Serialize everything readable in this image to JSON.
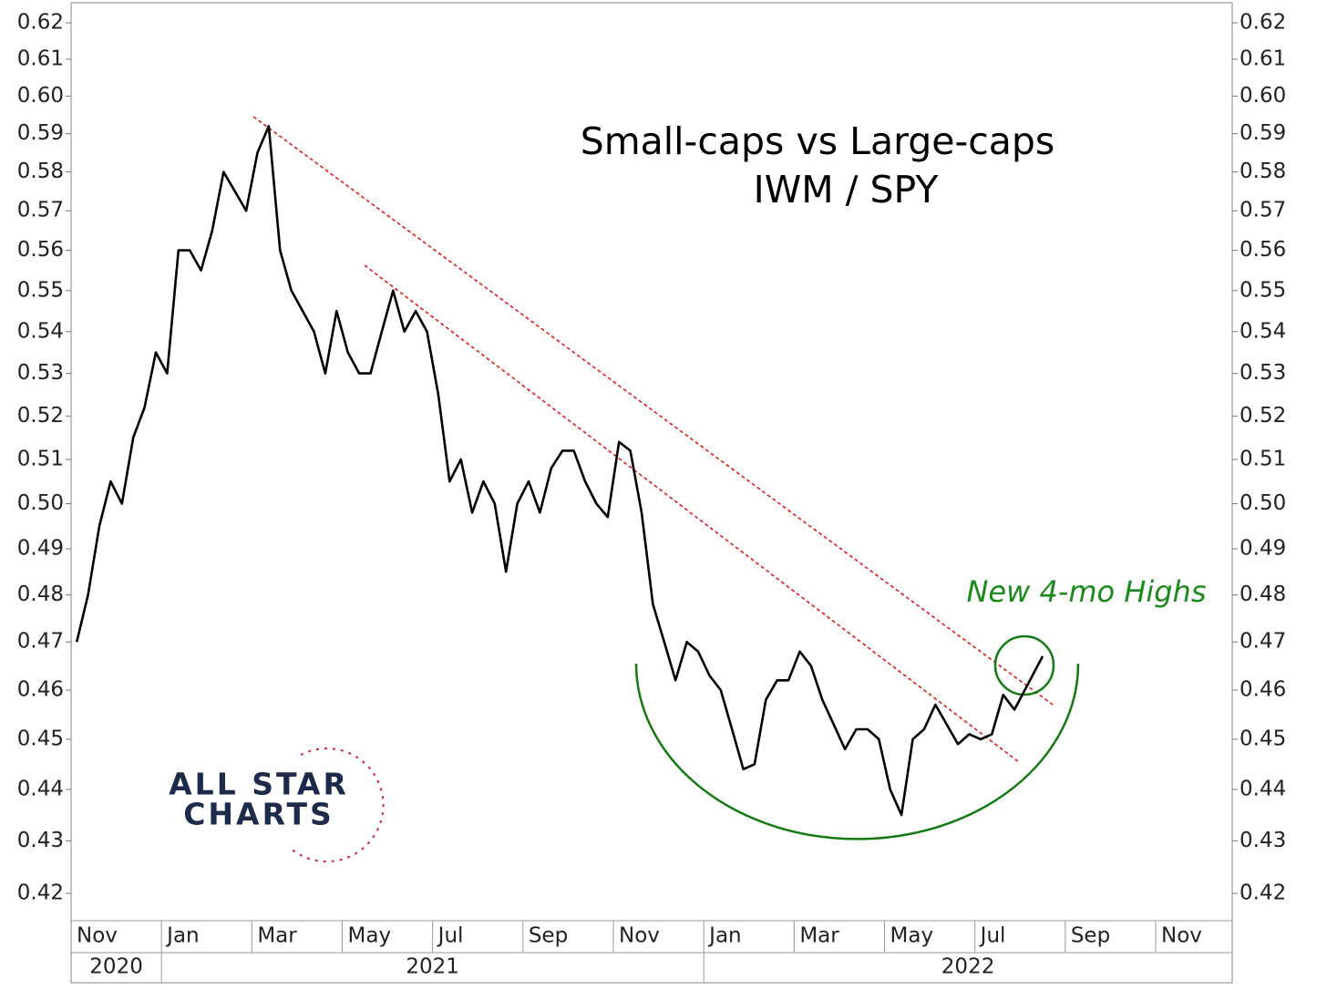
{
  "chart_data": {
    "type": "line",
    "title": [
      "Small-caps vs Large-caps",
      "IWM / SPY"
    ],
    "annotation": "New 4-mo Highs",
    "logo": [
      "ALL STAR",
      "CHARTS"
    ],
    "log_y": true,
    "ylim": [
      0.4149,
      0.6256
    ],
    "yticks": [
      0.42,
      0.43,
      0.44,
      0.45,
      0.46,
      0.47,
      0.48,
      0.49,
      {
        "value": 0.5,
        "label": "0.50"
      },
      0.51,
      0.52,
      0.53,
      0.54,
      0.55,
      0.56,
      0.57,
      0.58,
      0.59,
      {
        "value": 0.6,
        "label": "0.60"
      },
      0.61,
      0.62
    ],
    "xlim": [
      "2020-11",
      "2022-12"
    ],
    "xticks": [
      {
        "value": "2020-11",
        "label": "Nov"
      },
      {
        "value": "2021-01",
        "label": "Jan"
      },
      {
        "value": "2021-03",
        "label": "Mar"
      },
      {
        "value": "2021-05",
        "label": "May"
      },
      {
        "value": "2021-07",
        "label": "Jul"
      },
      {
        "value": "2021-09",
        "label": "Sep"
      },
      {
        "value": "2021-11",
        "label": "Nov"
      },
      {
        "value": "2022-01",
        "label": "Jan"
      },
      {
        "value": "2022-03",
        "label": "Mar"
      },
      {
        "value": "2022-05",
        "label": "May"
      },
      {
        "value": "2022-07",
        "label": "Jul"
      },
      {
        "value": "2022-09",
        "label": "Sep"
      },
      {
        "value": "2022-11",
        "label": "Nov"
      }
    ],
    "years": [
      "2020",
      "2021",
      "2022"
    ],
    "series": [
      {
        "color": "#000000",
        "x": [
          "2020-11",
          "2020-11",
          "2020-11",
          "2020-11",
          "2020-12",
          "2020-12",
          "2020-12",
          "2020-12",
          "2021-01",
          "2021-01",
          "2021-01",
          "2021-01",
          "2021-02",
          "2021-02",
          "2021-02",
          "2021-02",
          "2021-03",
          "2021-03",
          "2021-03",
          "2021-03",
          "2021-04",
          "2021-04",
          "2021-04",
          "2021-04",
          "2021-05",
          "2021-05",
          "2021-05",
          "2021-05",
          "2021-06",
          "2021-06",
          "2021-06",
          "2021-06",
          "2021-07",
          "2021-07",
          "2021-07",
          "2021-07",
          "2021-08",
          "2021-08",
          "2021-08",
          "2021-08",
          "2021-09",
          "2021-09",
          "2021-09",
          "2021-09",
          "2021-10",
          "2021-10",
          "2021-10",
          "2021-10",
          "2021-11",
          "2021-11",
          "2021-11",
          "2021-11",
          "2021-12",
          "2021-12",
          "2021-12",
          "2021-12",
          "2022-01",
          "2022-01",
          "2022-01",
          "2022-01",
          "2022-02",
          "2022-02",
          "2022-02",
          "2022-02",
          "2022-03",
          "2022-03",
          "2022-03",
          "2022-03",
          "2022-04",
          "2022-04",
          "2022-04",
          "2022-04",
          "2022-05",
          "2022-05",
          "2022-05",
          "2022-05",
          "2022-06",
          "2022-06",
          "2022-06",
          "2022-06",
          "2022-07",
          "2022-07",
          "2022-07",
          "2022-07",
          "2022-08"
        ],
        "values": [
          0.47,
          0.48,
          0.495,
          0.505,
          0.5,
          0.515,
          0.522,
          0.535,
          0.53,
          0.56,
          0.56,
          0.555,
          0.565,
          0.58,
          0.575,
          0.57,
          0.585,
          0.592,
          0.56,
          0.55,
          0.545,
          0.54,
          0.53,
          0.545,
          0.535,
          0.53,
          0.53,
          0.54,
          0.55,
          0.54,
          0.545,
          0.54,
          0.525,
          0.505,
          0.51,
          0.498,
          0.505,
          0.5,
          0.485,
          0.5,
          0.505,
          0.498,
          0.508,
          0.512,
          0.512,
          0.505,
          0.5,
          0.497,
          0.514,
          0.512,
          0.498,
          0.478,
          0.47,
          0.462,
          0.47,
          0.468,
          0.463,
          0.46,
          0.452,
          0.444,
          0.445,
          0.458,
          0.462,
          0.462,
          0.468,
          0.465,
          0.458,
          0.453,
          0.448,
          0.452,
          0.452,
          0.45,
          0.44,
          0.435,
          0.45,
          0.452,
          0.457,
          0.453,
          0.449,
          0.451,
          0.45,
          0.451,
          0.459,
          0.456,
          0.467
        ]
      }
    ]
  }
}
